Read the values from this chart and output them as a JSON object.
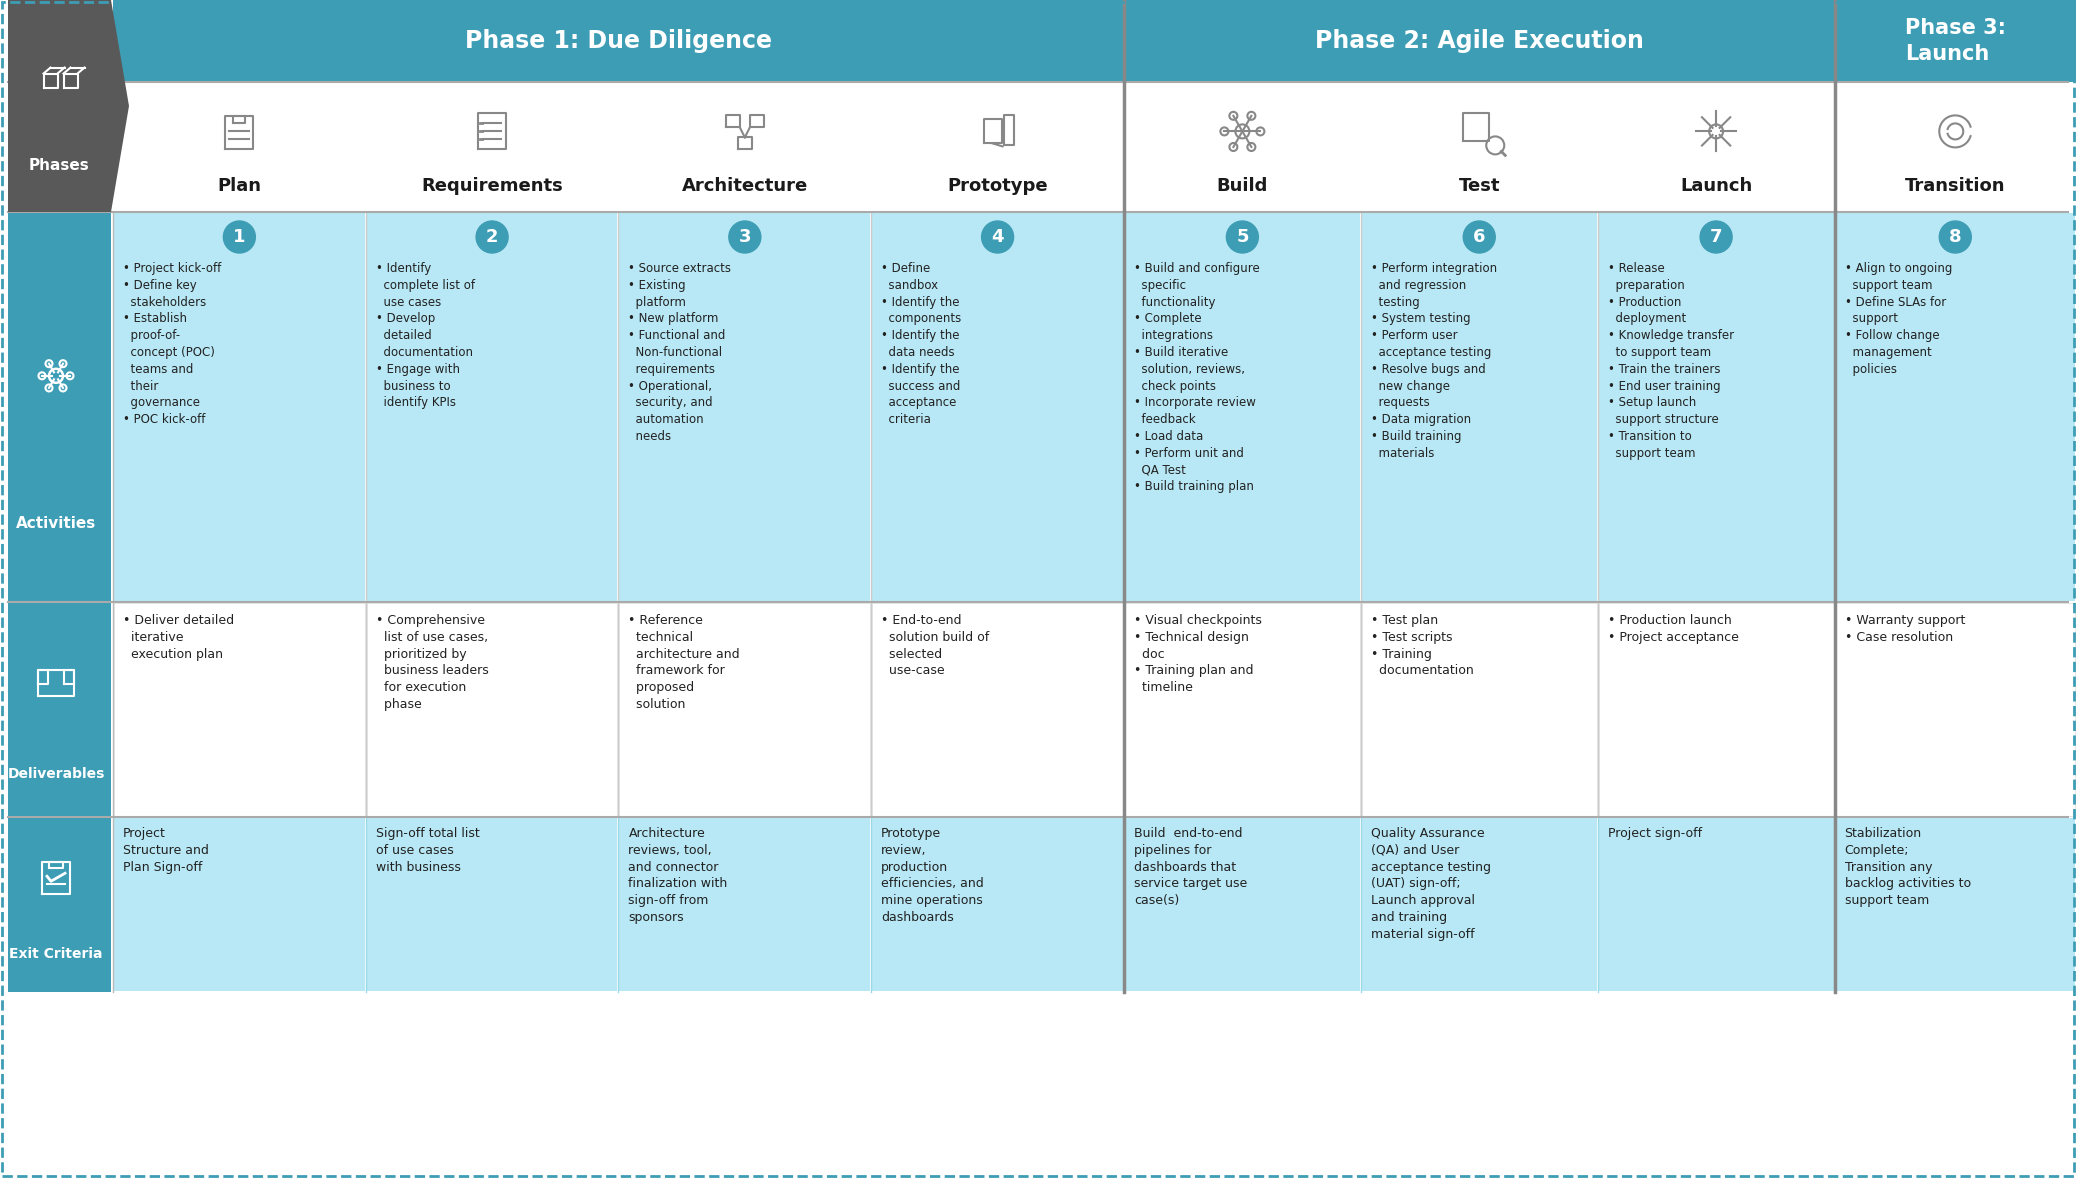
{
  "bg_color": "#ffffff",
  "teal_dark": "#3d9db5",
  "teal_light": "#5ab9d0",
  "teal_lighter": "#aee3f0",
  "teal_cell": "#b8e8f5",
  "gray_dark": "#595959",
  "white": "#ffffff",
  "black": "#1a1a1a",
  "dark_text": "#222222",
  "phase1_title": "Phase 1: Due Diligence",
  "phase2_title": "Phase 2: Agile Execution",
  "phase3_title": "Phase 3:\nLaunch",
  "col_labels": [
    "Plan",
    "Requirements",
    "Architecture",
    "Prototype",
    "Build",
    "Test",
    "Launch",
    "Transition"
  ],
  "col_numbers": [
    "1",
    "2",
    "3",
    "4",
    "5",
    "6",
    "7",
    "8"
  ],
  "activities": [
    "• Project kick-off\n• Define key\n  stakeholders\n• Establish\n  proof-of-\n  concept (POC)\n  teams and\n  their\n  governance\n• POC kick-off",
    "• Identify\n  complete list of\n  use cases\n• Develop\n  detailed\n  documentation\n• Engage with\n  business to\n  identify KPIs",
    "• Source extracts\n• Existing\n  platform\n• New platform\n• Functional and\n  Non-functional\n  requirements\n• Operational,\n  security, and\n  automation\n  needs",
    "• Define\n  sandbox\n• Identify the\n  components\n• Identify the\n  data needs\n• Identify the\n  success and\n  acceptance\n  criteria",
    "• Build and configure\n  specific\n  functionality\n• Complete\n  integrations\n• Build iterative\n  solution, reviews,\n  check points\n• Incorporate review\n  feedback\n• Load data\n• Perform unit and\n  QA Test\n• Build training plan",
    "• Perform integration\n  and regression\n  testing\n• System testing\n• Perform user\n  acceptance testing\n• Resolve bugs and\n  new change\n  requests\n• Data migration\n• Build training\n  materials",
    "• Release\n  preparation\n• Production\n  deployment\n• Knowledge transfer\n  to support team\n• Train the trainers\n• End user training\n• Setup launch\n  support structure\n• Transition to\n  support team",
    "• Align to ongoing\n  support team\n• Define SLAs for\n  support\n• Follow change\n  management\n  policies"
  ],
  "deliverables": [
    "• Deliver detailed\n  iterative\n  execution plan",
    "• Comprehensive\n  list of use cases,\n  prioritized by\n  business leaders\n  for execution\n  phase",
    "• Reference\n  technical\n  architecture and\n  framework for\n  proposed\n  solution",
    "• End-to-end\n  solution build of\n  selected\n  use-case",
    "• Visual checkpoints\n• Technical design\n  doc\n• Training plan and\n  timeline",
    "• Test plan\n• Test scripts\n• Training\n  documentation",
    "• Production launch\n• Project acceptance",
    "• Warranty support\n• Case resolution"
  ],
  "exit_criteria": [
    "Project\nStructure and\nPlan Sign-off",
    "Sign-off total list\nof use cases\nwith business",
    "Architecture\nreviews, tool,\nand connector\nfinalization with\nsign-off from\nsponsors",
    "Prototype\nreview,\nproduction\nefficiencies, and\nmine operations\ndashboards",
    "Build  end-to-end\npipelines for\ndashboards that\nservice target use\ncase(s)",
    "Quality Assurance\n(QA) and User\nacceptance testing\n(UAT) sign-off;\nLaunch approval\nand training\nmaterial sign-off",
    "Project sign-off",
    "Stabilization\nComplete;\nTransition any\nbacklog activities to\nsupport team"
  ]
}
